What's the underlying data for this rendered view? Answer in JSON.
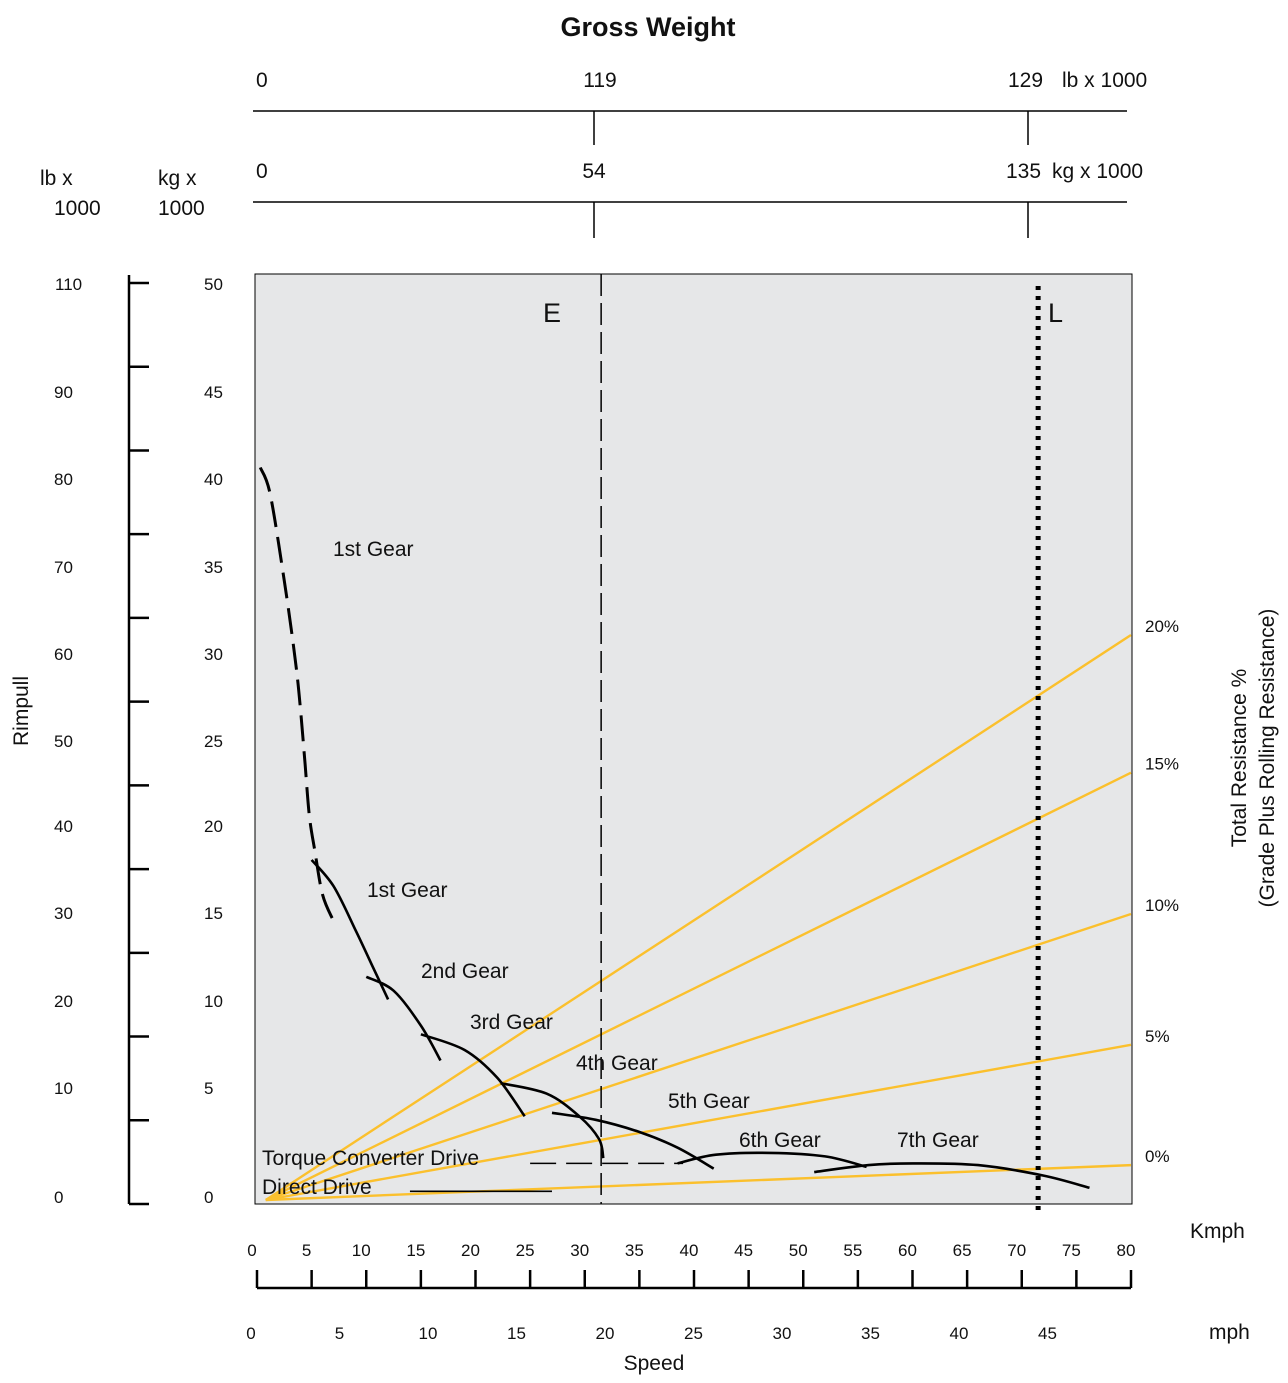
{
  "chart_data": {
    "type": "line",
    "title": "Gross Weight",
    "gross_weight_scales": [
      {
        "unit_label": "lb x 1000",
        "ticks": [
          "0",
          "119",
          "129"
        ]
      },
      {
        "unit_label": "kg x 1000",
        "ticks": [
          "0",
          "54",
          "135"
        ]
      }
    ],
    "y_axis": {
      "label": "Rimpull",
      "lb_unit": [
        "lb x",
        "1000"
      ],
      "kg_unit": [
        "kg x",
        "1000"
      ],
      "lb_ticks": [
        "110",
        "90",
        "80",
        "70",
        "60",
        "50",
        "40",
        "30",
        "20",
        "10",
        "0"
      ],
      "kg_ticks": [
        "50",
        "45",
        "40",
        "35",
        "30",
        "25",
        "20",
        "15",
        "10",
        "5",
        "0"
      ],
      "kg_range": [
        0,
        50
      ]
    },
    "x_axis": {
      "label": "Speed",
      "kmph_unit": "Kmph",
      "mph_unit": "mph",
      "kmph_ticks": [
        "0",
        "5",
        "10",
        "15",
        "20",
        "25",
        "30",
        "35",
        "40",
        "45",
        "50",
        "55",
        "60",
        "65",
        "70",
        "75",
        "80"
      ],
      "mph_ticks": [
        "0",
        "5",
        "10",
        "15",
        "20",
        "25",
        "30",
        "35",
        "40",
        "45"
      ],
      "kmph_range": [
        0,
        80
      ]
    },
    "resistance_axis": {
      "label_line1": "Total Resistance %",
      "label_line2": "(Grade Plus Rolling Resistance)",
      "lines": [
        {
          "label": "20%",
          "end_kg": 32.4
        },
        {
          "label": "15%",
          "end_kg": 24.5
        },
        {
          "label": "10%",
          "end_kg": 16.4
        },
        {
          "label": "5%",
          "end_kg": 8.9
        },
        {
          "label": "0%",
          "end_kg": 2.0
        }
      ],
      "origin_kmph": 0.8,
      "origin_kg": 0
    },
    "reference_lines": [
      {
        "label": "E",
        "kmph": 31.5,
        "style": "dashed"
      },
      {
        "label": "L",
        "kmph": 71.5,
        "style": "dotted"
      }
    ],
    "drive_labels": [
      "Torque Converter Drive",
      "Direct Drive"
    ],
    "torque_converter_line": {
      "kmph": [
        25,
        39
      ],
      "kg": [
        2.1,
        2.1
      ]
    },
    "direct_drive_line": {
      "kmph": [
        14,
        27
      ],
      "kg": [
        0.5,
        0.5
      ]
    },
    "converter_curve": {
      "name": "1st Gear",
      "kmph": [
        0.3,
        1.2,
        2.5,
        3.5,
        4.0,
        4.4,
        4.8,
        5.3,
        6.0,
        7.0
      ],
      "kg": [
        42,
        40.5,
        35.5,
        31,
        28,
        25,
        22,
        20,
        17.5,
        16
      ]
    },
    "gear_curves": [
      {
        "name": "1st Gear",
        "kmph": [
          5,
          7,
          9,
          10.5,
          12
        ],
        "kg": [
          19.5,
          18,
          15.5,
          13.5,
          11.5
        ]
      },
      {
        "name": "2nd Gear",
        "kmph": [
          10,
          12.5,
          15,
          16.8
        ],
        "kg": [
          12.8,
          12,
          10,
          8
        ]
      },
      {
        "name": "3rd Gear",
        "kmph": [
          15,
          19,
          22,
          24.5
        ],
        "kg": [
          9.5,
          8.6,
          7,
          4.8
        ]
      },
      {
        "name": "4th Gear",
        "kmph": [
          22.3,
          26.5,
          29.5,
          31.3,
          31.7
        ],
        "kg": [
          6.7,
          6.1,
          4.8,
          3.5,
          2.4
        ]
      },
      {
        "name": "5th Gear",
        "kmph": [
          27,
          31,
          35,
          38.5,
          41.8
        ],
        "kg": [
          5,
          4.6,
          3.9,
          3,
          1.8
        ]
      },
      {
        "name": "6th Gear",
        "kmph": [
          38.5,
          42,
          47,
          52,
          55.8
        ],
        "kg": [
          2.1,
          2.6,
          2.7,
          2.5,
          1.9
        ]
      },
      {
        "name": "7th Gear",
        "kmph": [
          51,
          56,
          60,
          66,
          72,
          76.2
        ],
        "kg": [
          1.6,
          2.0,
          2.1,
          2.0,
          1.4,
          0.7
        ]
      }
    ]
  }
}
